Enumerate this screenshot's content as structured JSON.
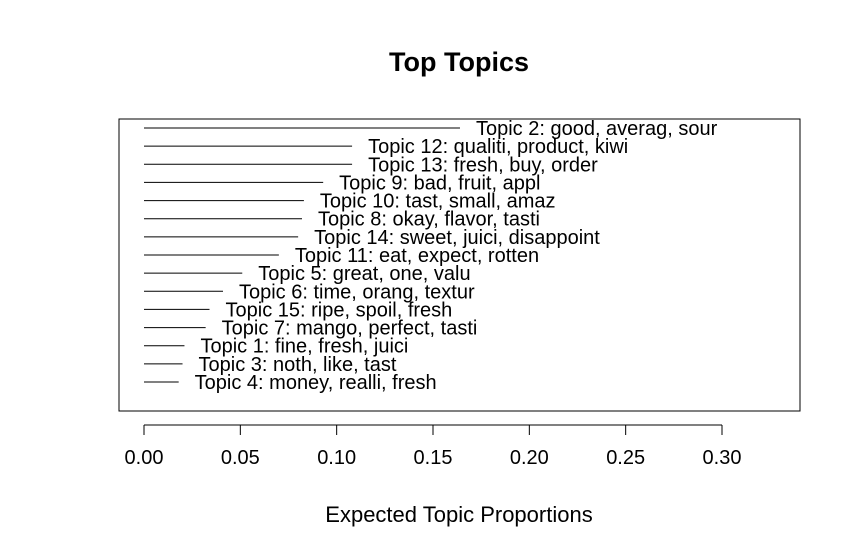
{
  "chart_data": {
    "type": "bar",
    "orientation": "horizontal",
    "title": "Top Topics",
    "xlabel": "Expected Topic Proportions",
    "ylabel": "",
    "xlim": [
      0,
      0.34
    ],
    "xticks": [
      0.0,
      0.05,
      0.1,
      0.15,
      0.2,
      0.25,
      0.3
    ],
    "xtick_labels": [
      "0.00",
      "0.05",
      "0.10",
      "0.15",
      "0.20",
      "0.25",
      "0.30"
    ],
    "grid": false,
    "categories": [
      "Topic 2: good, averag, sour",
      "Topic 12: qualiti, product, kiwi",
      "Topic 13: fresh, buy, order",
      "Topic 9: bad, fruit, appl",
      "Topic 10: tast, small, amaz",
      "Topic 8: okay, flavor, tasti",
      "Topic 14: sweet, juici, disappoint",
      "Topic 11: eat, expect, rotten",
      "Topic 5: great, one, valu",
      "Topic 6: time, orang, textur",
      "Topic 15: ripe, spoil, fresh",
      "Topic 7: mango, perfect, tasti",
      "Topic 1: fine, fresh, juici",
      "Topic 3: noth, like, tast",
      "Topic 4: money, realli, fresh"
    ],
    "values": [
      0.164,
      0.108,
      0.108,
      0.093,
      0.083,
      0.082,
      0.08,
      0.07,
      0.051,
      0.041,
      0.034,
      0.032,
      0.021,
      0.02,
      0.018
    ]
  }
}
